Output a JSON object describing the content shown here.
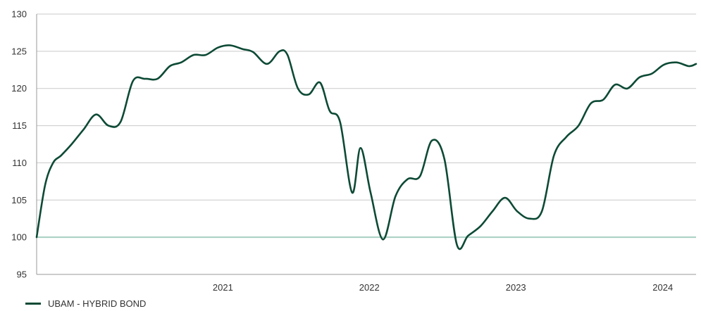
{
  "chart_data": {
    "type": "line",
    "title": "",
    "xlabel": "",
    "ylabel": "",
    "ylim": [
      95,
      130
    ],
    "yticks": [
      95,
      100,
      105,
      110,
      115,
      120,
      125,
      130
    ],
    "xticks": [
      "2021",
      "2022",
      "2023",
      "2024"
    ],
    "xlim": [
      "2020-03-25",
      "2024-09-23"
    ],
    "grid": true,
    "baseline": 100,
    "legend_position": "bottom-left",
    "series": [
      {
        "name": "UBAM - HYBRID BOND",
        "color": "#0d4a35",
        "x": [
          "2020-03-25",
          "2020-04-15",
          "2020-05-05",
          "2020-05-25",
          "2020-06-20",
          "2020-07-20",
          "2020-08-20",
          "2020-09-20",
          "2020-10-20",
          "2020-11-20",
          "2020-12-20",
          "2021-01-20",
          "2021-02-20",
          "2021-03-20",
          "2021-04-20",
          "2021-05-20",
          "2021-06-20",
          "2021-07-20",
          "2021-08-20",
          "2021-09-15",
          "2021-10-20",
          "2021-11-20",
          "2021-12-10",
          "2022-01-05",
          "2022-02-01",
          "2022-03-01",
          "2022-03-25",
          "2022-04-20",
          "2022-05-20",
          "2022-06-10",
          "2022-07-05",
          "2022-08-05",
          "2022-09-05",
          "2022-10-05",
          "2022-11-05",
          "2022-12-05",
          "2023-01-05",
          "2023-02-05",
          "2023-03-05",
          "2023-04-05",
          "2023-05-05",
          "2023-06-05",
          "2023-07-05",
          "2023-08-05",
          "2023-09-05",
          "2023-10-05",
          "2023-11-05",
          "2023-12-05",
          "2024-01-05",
          "2024-02-05",
          "2024-03-05",
          "2024-04-05",
          "2024-05-05",
          "2024-06-05",
          "2024-07-05",
          "2024-08-05",
          "2024-09-05",
          "2024-09-23"
        ],
        "values": [
          100,
          107,
          110,
          111,
          112.5,
          114.5,
          116.5,
          115,
          115.5,
          121,
          121.3,
          121.3,
          123,
          123.5,
          124.5,
          124.5,
          125.5,
          125.8,
          125.3,
          124.9,
          123.3,
          125,
          124.5,
          120,
          119.2,
          120.8,
          117,
          115.5,
          106,
          112,
          106,
          99.7,
          105.5,
          107.8,
          108.2,
          113,
          110.5,
          99,
          100.2,
          101.5,
          103.5,
          105.3,
          103.5,
          102.5,
          103.5,
          111,
          113.5,
          115,
          118,
          118.5,
          120.5,
          120,
          121.5,
          122,
          123.2,
          123.5,
          123,
          123.3
        ]
      }
    ]
  }
}
